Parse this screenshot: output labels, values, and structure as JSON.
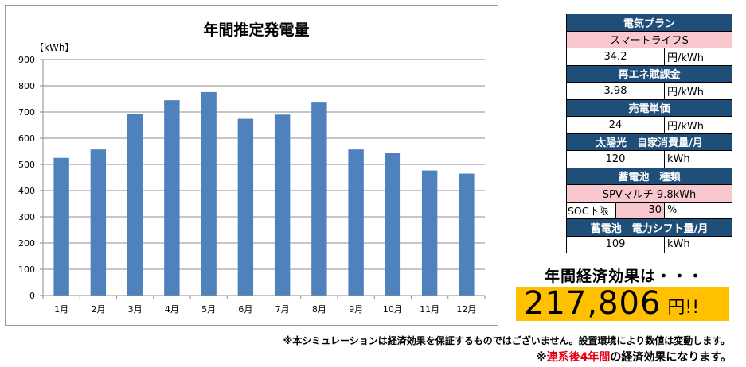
{
  "chart_data": {
    "type": "bar",
    "title": "年間推定発電量",
    "ylabel": "【kWh】",
    "xlabel": "",
    "categories": [
      "1月",
      "2月",
      "3月",
      "4月",
      "5月",
      "6月",
      "7月",
      "8月",
      "9月",
      "10月",
      "11月",
      "12月"
    ],
    "values": [
      525,
      557,
      693,
      745,
      776,
      674,
      690,
      736,
      557,
      544,
      477,
      465
    ],
    "ylim": [
      0,
      900
    ],
    "yticks": [
      0,
      100,
      200,
      300,
      400,
      500,
      600,
      700,
      800,
      900
    ],
    "grid": true,
    "legend": "none",
    "bar_color": "#4f81bd"
  },
  "specs": {
    "plan_header": "電気プラン",
    "plan_value": "スマートライフS",
    "plan_price": "34.2",
    "plan_price_unit": "円/kWh",
    "renew_header": "再エネ賦課金",
    "renew_value": "3.98",
    "renew_unit": "円/kWh",
    "sell_header": "売電単価",
    "sell_value": "24",
    "sell_unit": "円/kWh",
    "self_header": "太陽光　自家消費量/月",
    "self_value": "120",
    "self_unit": "kWh",
    "battery_header": "蓄電池　種類",
    "battery_value": "SPVマルチ 9.8kWh",
    "soc_label": "SOC下限",
    "soc_value": "30",
    "soc_unit": "%",
    "shift_header": "蓄電池　電力シフト量/月",
    "shift_value": "109",
    "shift_unit": "kWh"
  },
  "effect": {
    "title": "年間経済効果は・・・",
    "amount": "217,806",
    "unit": "円!!"
  },
  "notes": {
    "disclaimer": "※本シミュレーションは経済効果を保証するものではございません。設置環境により数値は変動します。",
    "line2_prefix": "※",
    "line2_red": "連系後4年間",
    "line2_suffix": "の経済効果になります。"
  }
}
